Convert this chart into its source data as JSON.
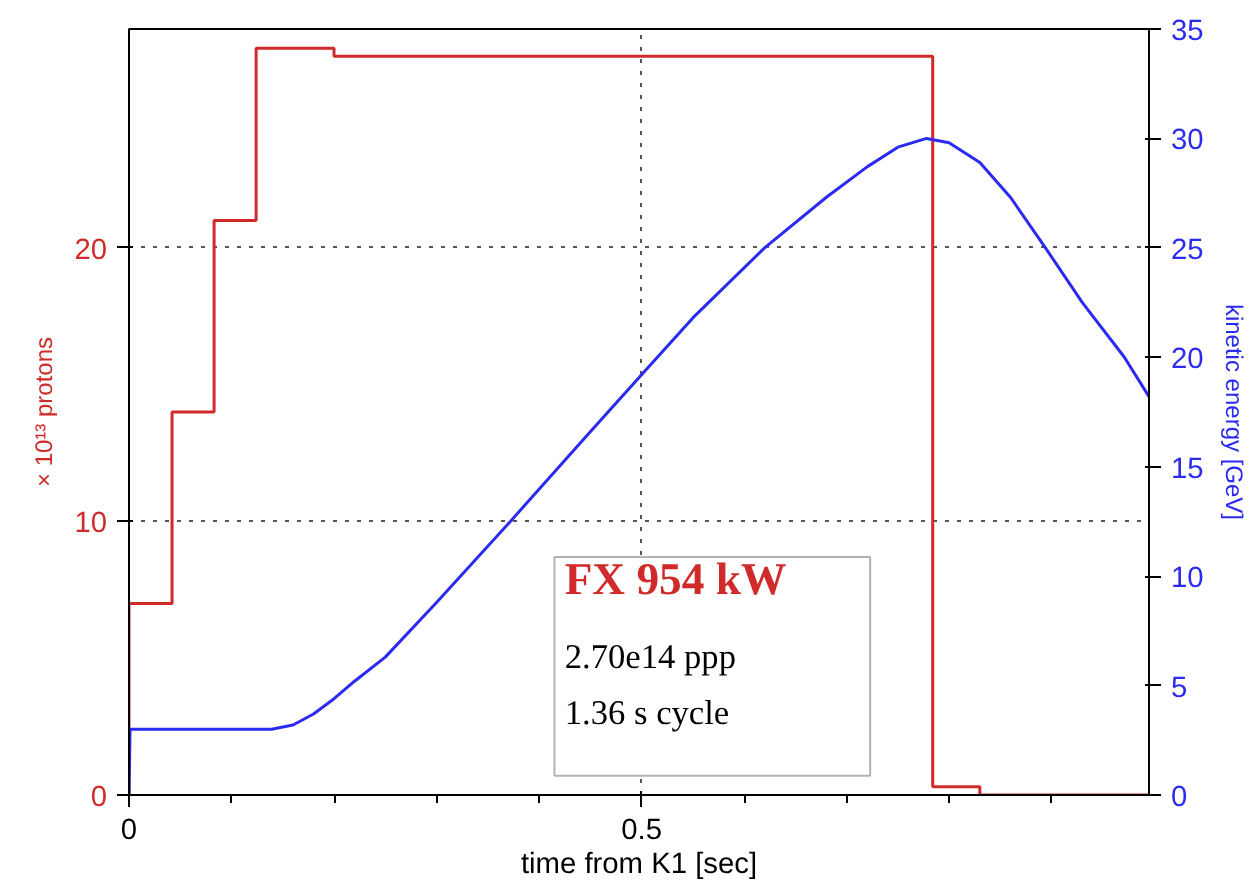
{
  "chart_data": {
    "type": "line",
    "xlabel": "time from K1 [sec]",
    "ylabel": "× 10¹³ protons",
    "y2label": "kinetic energy [GeV]",
    "xlim": [
      0,
      0.995
    ],
    "ylim": [
      0,
      28
    ],
    "y2lim": [
      0,
      35
    ],
    "xticks": [
      0,
      {
        "value": 0.1,
        "label": null
      },
      {
        "value": 0.2,
        "label": null
      },
      {
        "value": 0.3,
        "label": null
      },
      {
        "value": 0.4,
        "label": null
      },
      0.5,
      {
        "value": 0.6,
        "label": null
      },
      {
        "value": 0.7,
        "label": null
      },
      {
        "value": 0.8,
        "label": null
      },
      {
        "value": 0.9,
        "label": null
      }
    ],
    "yticks": [
      0,
      10,
      20
    ],
    "y2ticks": [
      0,
      5,
      10,
      15,
      20,
      25,
      30,
      35
    ],
    "grid": true,
    "line_style": "solid",
    "series": [
      {
        "type": "step",
        "color": "#d02a2a",
        "x": [
          0,
          0,
          0.042,
          0.083,
          0.124,
          0.2,
          0.784,
          0.83,
          0.995
        ],
        "values": [
          0,
          7,
          14,
          21,
          27.3,
          27,
          0.3,
          0,
          0
        ]
      },
      {
        "axis": "y2",
        "color": "#2a2af0",
        "x": [
          0,
          0.001,
          0.139,
          0.16,
          0.18,
          0.2,
          0.22,
          0.25,
          0.3,
          0.372,
          0.45,
          0.5,
          0.55,
          0.62,
          0.68,
          0.72,
          0.75,
          0.778,
          0.8,
          0.83,
          0.86,
          0.894,
          0.93,
          0.971,
          0.995
        ],
        "values": [
          0,
          3,
          3,
          3.2,
          3.7,
          4.4,
          5.2,
          6.3,
          8.8,
          12.5,
          16.6,
          19.2,
          21.8,
          25,
          27.3,
          28.7,
          29.6,
          30,
          29.8,
          28.9,
          27.3,
          25,
          22.5,
          20,
          18.2
        ]
      }
    ],
    "annotations": [
      "FX 954 kW",
      "2.70e14 ppp",
      "1.36 s cycle"
    ]
  }
}
